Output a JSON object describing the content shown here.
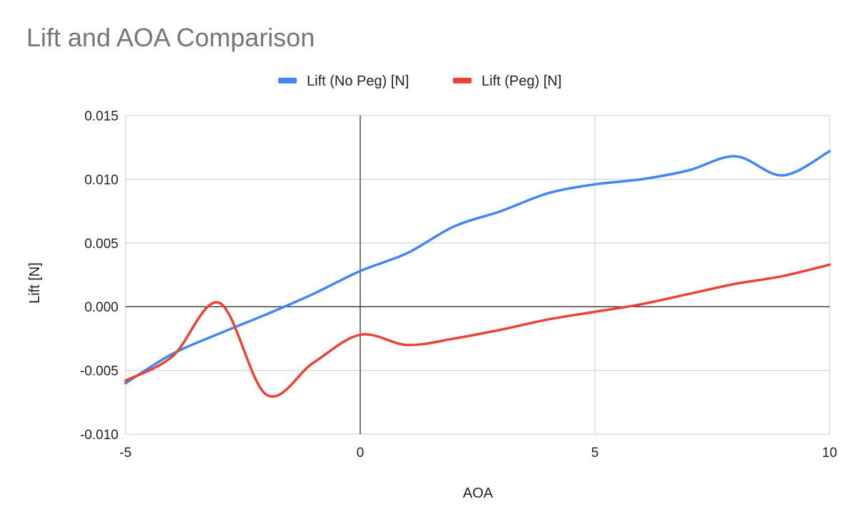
{
  "chart_data": {
    "type": "line",
    "title": "Lift and AOA Comparison",
    "xlabel": "AOA",
    "ylabel": "Lift [N]",
    "xlim": [
      -5,
      10
    ],
    "ylim": [
      -0.01,
      0.015
    ],
    "x_ticks": [
      -5,
      0,
      5,
      10
    ],
    "x_tick_labels": [
      "-5",
      "0",
      "5",
      "10"
    ],
    "y_ticks": [
      -0.01,
      -0.005,
      0,
      0.005,
      0.01,
      0.015
    ],
    "y_tick_labels": [
      "-0.010",
      "-0.005",
      "0.000",
      "0.005",
      "0.010",
      "0.015"
    ],
    "grid": true,
    "smooth": true,
    "legend_position": "top",
    "x": [
      -5,
      -4,
      -3,
      -2,
      -1,
      0,
      1,
      2,
      3,
      4,
      5,
      6,
      7,
      8,
      9,
      10
    ],
    "series": [
      {
        "name": "Lift (No Peg) [N]",
        "color": "#4285f4",
        "values": [
          -0.006,
          -0.0037,
          -0.0021,
          -0.0006,
          0.001,
          0.0028,
          0.0042,
          0.0063,
          0.0075,
          0.0089,
          0.0096,
          0.01,
          0.0107,
          0.0118,
          0.0103,
          0.0122
        ]
      },
      {
        "name": "Lift (Peg) [N]",
        "color": "#ea4335",
        "values": [
          -0.0058,
          -0.0039,
          0.0003,
          -0.0069,
          -0.0044,
          -0.0022,
          -0.003,
          -0.0025,
          -0.0018,
          -0.001,
          -0.0004,
          0.0002,
          0.001,
          0.0018,
          0.0024,
          0.0033
        ]
      }
    ]
  }
}
